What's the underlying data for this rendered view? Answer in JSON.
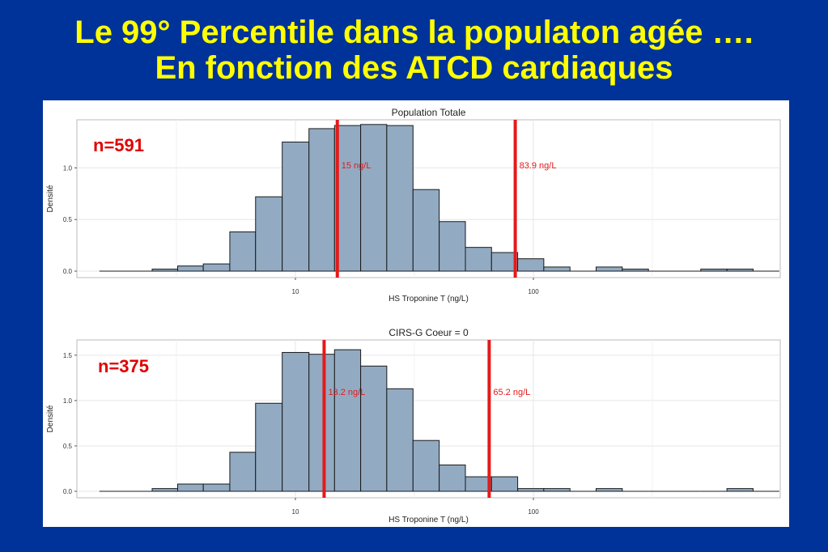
{
  "slide": {
    "title_line1": "Le 99° Percentile dans la populaton agée ….",
    "title_line2": "En fonction des ATCD cardiaques",
    "title_color": "#ffff00",
    "background_color": "#003399"
  },
  "chart_data": [
    {
      "type": "bar",
      "subtype": "histogram",
      "title": "Population Totale",
      "xlabel": "HS Troponine T (ng/L)",
      "ylabel": "Densité",
      "x_scale": "log",
      "x_ticks": [
        10,
        100
      ],
      "y_ticks": [
        "0.0",
        "0.5",
        "1.0"
      ],
      "ylim": [
        0,
        1.45
      ],
      "bin_edges": [
        1.5,
        1.93,
        2.5,
        3.2,
        4.1,
        5.3,
        6.8,
        8.8,
        11.4,
        14.6,
        18.8,
        24.2,
        31.2,
        40.2,
        51.8,
        66.7,
        85.9,
        110.6,
        142.5,
        183.5,
        236.4,
        304.5,
        392.2,
        505.2,
        650.7,
        838.2,
        1080
      ],
      "values": [
        0.0,
        0.0,
        0.02,
        0.05,
        0.07,
        0.38,
        0.72,
        1.25,
        1.38,
        1.41,
        1.42,
        1.41,
        0.79,
        0.48,
        0.23,
        0.18,
        0.12,
        0.04,
        0.0,
        0.04,
        0.02,
        0.0,
        0.0,
        0.02,
        0.02,
        0.0
      ],
      "bar_color": "#92abc3",
      "annotation": "n=591",
      "vlines": [
        {
          "x": 15,
          "label": "15 ng/L"
        },
        {
          "x": 83.9,
          "label": "83.9 ng/L"
        }
      ]
    },
    {
      "type": "bar",
      "subtype": "histogram",
      "title": "CIRS-G Coeur = 0",
      "xlabel": "HS Troponine T (ng/L)",
      "ylabel": "Densité",
      "x_scale": "log",
      "x_ticks": [
        10,
        100
      ],
      "y_ticks": [
        "0.0",
        "0.5",
        "1.0",
        "1.5"
      ],
      "ylim": [
        0,
        1.65
      ],
      "bin_edges": [
        1.5,
        1.93,
        2.5,
        3.2,
        4.1,
        5.3,
        6.8,
        8.8,
        11.4,
        14.6,
        18.8,
        24.2,
        31.2,
        40.2,
        51.8,
        66.7,
        85.9,
        110.6,
        142.5,
        183.5,
        236.4,
        304.5,
        392.2,
        505.2,
        650.7,
        838.2,
        1080
      ],
      "values": [
        0.0,
        0.0,
        0.03,
        0.08,
        0.08,
        0.43,
        0.97,
        1.53,
        1.51,
        1.56,
        1.38,
        1.13,
        0.56,
        0.29,
        0.16,
        0.16,
        0.03,
        0.03,
        0.0,
        0.03,
        0.0,
        0.0,
        0.0,
        0.0,
        0.03,
        0.0
      ],
      "bar_color": "#92abc3",
      "annotation": "n=375",
      "vlines": [
        {
          "x": 13.2,
          "label": "13.2 ng/L"
        },
        {
          "x": 65.2,
          "label": "65.2 ng/L"
        }
      ]
    }
  ]
}
